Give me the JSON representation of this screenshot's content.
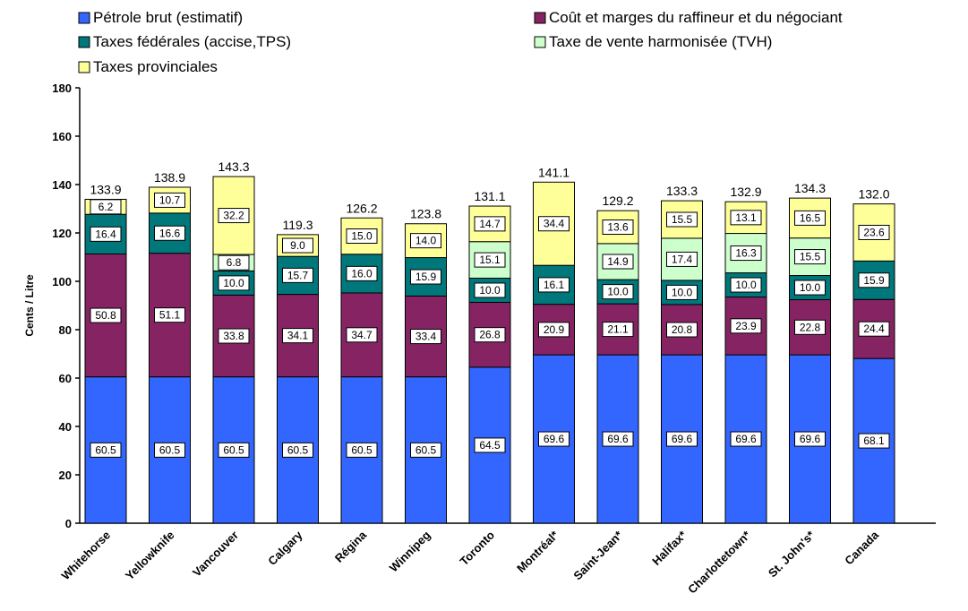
{
  "chart_data": {
    "type": "bar",
    "stacked": true,
    "ylabel": "Cents / Litre",
    "xlabel": "",
    "ylim": [
      0,
      180
    ],
    "yticks": [
      0,
      20,
      40,
      60,
      80,
      100,
      120,
      140,
      160,
      180
    ],
    "grid": false,
    "legend_position": "top",
    "categories": [
      "Whitehorse",
      "Yellowknife",
      "Vancouver",
      "Calgary",
      "Régina",
      "Winnipeg",
      "Toronto",
      "Montréal*",
      "Saint-Jean*",
      "Halifax*",
      "Charlottetown*",
      "St. John's*",
      "Canada"
    ],
    "series": [
      {
        "name": "Pétrole brut (estimatif)",
        "color": "#3366ff",
        "values": [
          60.5,
          60.5,
          60.5,
          60.5,
          60.5,
          60.5,
          64.5,
          69.6,
          69.6,
          69.6,
          69.6,
          69.6,
          68.1
        ]
      },
      {
        "name": "Coût et marges du raffineur et du négociant",
        "color": "#862463",
        "values": [
          50.8,
          51.1,
          33.8,
          34.1,
          34.7,
          33.4,
          26.8,
          20.9,
          21.1,
          20.8,
          23.9,
          22.8,
          24.4
        ]
      },
      {
        "name": "Taxes fédérales (accise,TPS)",
        "color": "#00777a",
        "values": [
          16.4,
          16.6,
          10.0,
          15.7,
          16.0,
          15.9,
          10.0,
          16.1,
          10.0,
          10.0,
          10.0,
          10.0,
          15.9
        ]
      },
      {
        "name": "Taxe de vente harmonisée (TVH)",
        "color": "#ccffcc",
        "values": [
          null,
          null,
          6.8,
          null,
          null,
          null,
          15.1,
          null,
          14.9,
          17.4,
          16.3,
          15.5,
          null
        ]
      },
      {
        "name": "Taxes provinciales",
        "color": "#ffff99",
        "values": [
          6.2,
          10.7,
          32.2,
          9.0,
          15.0,
          14.0,
          14.7,
          34.4,
          13.6,
          15.5,
          13.1,
          16.5,
          23.6
        ]
      }
    ],
    "totals": [
      "133.9",
      "138.9",
      "143.3",
      "119.3",
      "126.2",
      "123.8",
      "131.1",
      "141.1",
      "129.2",
      "133.3",
      "132.9",
      "134.3",
      "132.0"
    ]
  }
}
